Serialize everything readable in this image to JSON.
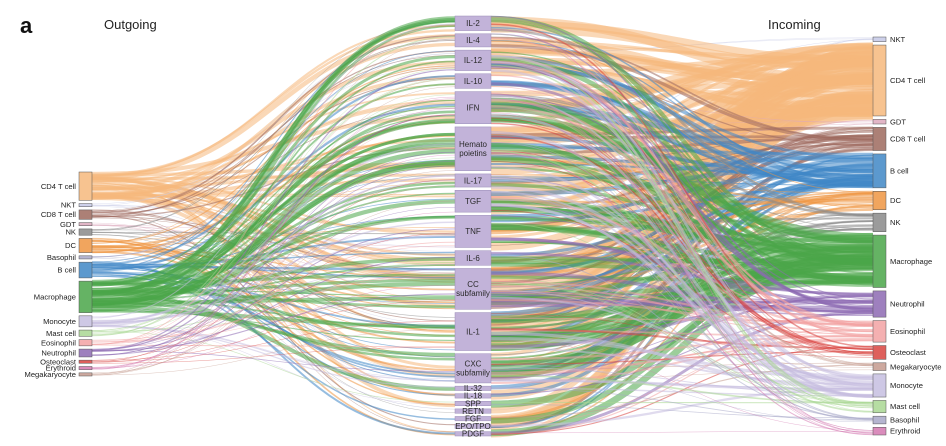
{
  "panel_letter": "a",
  "headers": {
    "outgoing": "Outgoing",
    "incoming": "Incoming"
  },
  "sources": [
    {
      "name": "CD4 T cell",
      "color": "#f6b87c",
      "weight": 18
    },
    {
      "name": "NKT",
      "color": "#c4c8e6",
      "weight": 2
    },
    {
      "name": "CD8 T cell",
      "color": "#9e6a5e",
      "weight": 6
    },
    {
      "name": "GDT",
      "color": "#dda9bd",
      "weight": 2
    },
    {
      "name": "NK",
      "color": "#8a8a8a",
      "weight": 4
    },
    {
      "name": "DC",
      "color": "#ef9542",
      "weight": 9
    },
    {
      "name": "Basophil",
      "color": "#a8a8c8",
      "weight": 2
    },
    {
      "name": "B cell",
      "color": "#3f87c6",
      "weight": 10
    },
    {
      "name": "Macrophage",
      "color": "#4aa649",
      "weight": 20
    },
    {
      "name": "Monocyte",
      "color": "#c6bee0",
      "weight": 7
    },
    {
      "name": "Mast cell",
      "color": "#a9d793",
      "weight": 4
    },
    {
      "name": "Eosinophil",
      "color": "#f2a2a3",
      "weight": 4
    },
    {
      "name": "Neutrophil",
      "color": "#8d6ab3",
      "weight": 5
    },
    {
      "name": "Osteoclast",
      "color": "#d8443f",
      "weight": 2
    },
    {
      "name": "Erythroid",
      "color": "#d378b0",
      "weight": 2
    },
    {
      "name": "Megakaryocyte",
      "color": "#c49a8e",
      "weight": 2
    }
  ],
  "cytokines": [
    {
      "name": "IL-2",
      "weight": 10
    },
    {
      "name": "IL-4",
      "weight": 9
    },
    {
      "name": "IL-12",
      "weight": 14
    },
    {
      "name": "IL-10",
      "weight": 10
    },
    {
      "name": "IFN",
      "weight": 22
    },
    {
      "name": "Hemato\npoietins",
      "weight": 30
    },
    {
      "name": "IL-17",
      "weight": 9
    },
    {
      "name": "TGF",
      "weight": 15
    },
    {
      "name": "TNF",
      "weight": 22
    },
    {
      "name": "IL-6",
      "weight": 10
    },
    {
      "name": "CC\nsubfamily",
      "weight": 28
    },
    {
      "name": "IL-1",
      "weight": 26
    },
    {
      "name": "CXC\nsubfamily",
      "weight": 20
    },
    {
      "name": "IL-32",
      "weight": 3
    },
    {
      "name": "IL-18",
      "weight": 3
    },
    {
      "name": "SPP",
      "weight": 3
    },
    {
      "name": "RETN",
      "weight": 3
    },
    {
      "name": "FGF",
      "weight": 3
    },
    {
      "name": "EPO/TPO",
      "weight": 3
    },
    {
      "name": "PDGF",
      "weight": 3
    }
  ],
  "targets": [
    {
      "name": "NKT",
      "color": "#c4c8e6",
      "weight": 3
    },
    {
      "name": "CD4 T cell",
      "color": "#f6b87c",
      "weight": 46
    },
    {
      "name": "GDT",
      "color": "#dda9bd",
      "weight": 3
    },
    {
      "name": "CD8 T cell",
      "color": "#9e6a5e",
      "weight": 15
    },
    {
      "name": "B cell",
      "color": "#3f87c6",
      "weight": 22
    },
    {
      "name": "DC",
      "color": "#ef9542",
      "weight": 12
    },
    {
      "name": "NK",
      "color": "#8a8a8a",
      "weight": 12
    },
    {
      "name": "Macrophage",
      "color": "#4aa649",
      "weight": 34
    },
    {
      "name": "Neutrophil",
      "color": "#8d6ab3",
      "weight": 17
    },
    {
      "name": "Eosinophil",
      "color": "#f2a2a3",
      "weight": 14
    },
    {
      "name": "Osteoclast",
      "color": "#d8443f",
      "weight": 9
    },
    {
      "name": "Megakaryocyte",
      "color": "#c49a8e",
      "weight": 5
    },
    {
      "name": "Monocyte",
      "color": "#c6bee0",
      "weight": 15
    },
    {
      "name": "Mast cell",
      "color": "#a9d793",
      "weight": 8
    },
    {
      "name": "Basophil",
      "color": "#a8a8c8",
      "weight": 5
    },
    {
      "name": "Erythroid",
      "color": "#d378b0",
      "weight": 5
    }
  ],
  "cytokine_node_color": "#c2b3d9"
}
